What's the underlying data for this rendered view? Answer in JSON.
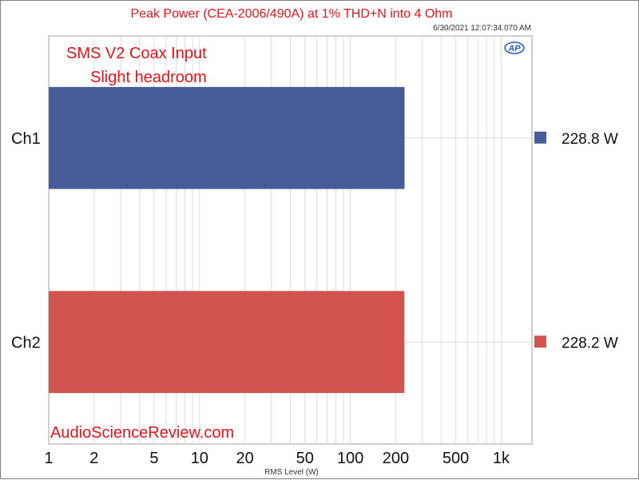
{
  "chart_data": {
    "type": "bar",
    "orientation": "horizontal",
    "title": "Peak Power (CEA-2006/490A) at 1% THD+N into 4 Ohm",
    "timestamp": "6/30/2021 12:07:34.070 AM",
    "annotations": [
      "SMS V2 Coax Input",
      "Slight headroom"
    ],
    "watermark": "AudioScienceReview.com",
    "logo_text": "AP",
    "categories": [
      "Ch1",
      "Ch2"
    ],
    "values": [
      228.8,
      228.2
    ],
    "colors": [
      "#465d9a",
      "#d2524f"
    ],
    "legend": [
      {
        "label": "228.8  W",
        "color": "#465d9a"
      },
      {
        "label": "228.2  W",
        "color": "#d2524f"
      }
    ],
    "legend_placement": "right",
    "xlabel": "RMS Level (W)",
    "xscale": "log",
    "xlim": [
      1,
      1600
    ],
    "xticks": [
      1,
      2,
      5,
      10,
      20,
      50,
      100,
      200,
      500,
      1000
    ],
    "xtick_labels": [
      "1",
      "2",
      "5",
      "10",
      "20",
      "50",
      "100",
      "200",
      "500",
      "1k"
    ],
    "grid": true
  }
}
